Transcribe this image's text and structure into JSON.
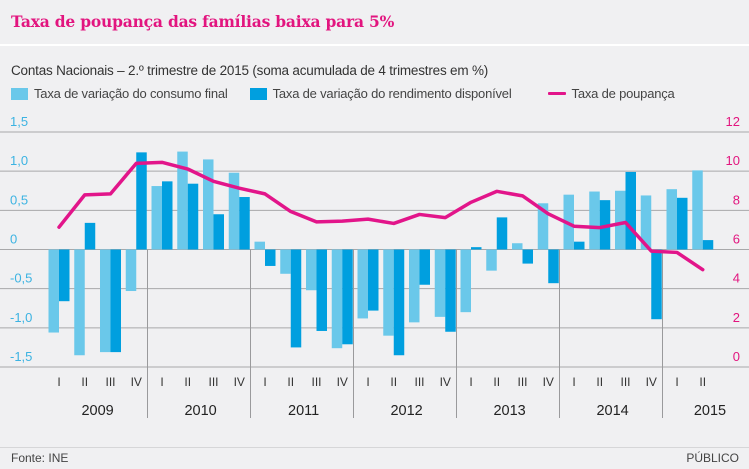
{
  "title": "Taxa de poupança das famílias baixa para 5%",
  "footer": {
    "source": "Fonte: INE",
    "brand": "PÚBLICO"
  },
  "colors": {
    "title": "#e2157f",
    "consumo": "#6ac8ea",
    "rendimento": "#009fdf",
    "poupanca": "#e2158a",
    "left_axis": "#3cb3e2",
    "right_axis": "#e2157f",
    "grid": "#a8a8aa"
  },
  "chart_data": {
    "type": "bar",
    "title": "Taxa de poupança das famílias baixa para 5%",
    "subtitle": "Contas Nacionais – 2.º trimestre de 2015 (soma acumulada de 4 trimestres em %)",
    "grid": true,
    "legend_position": "top-left",
    "years": [
      "2009",
      "2010",
      "2011",
      "2012",
      "2013",
      "2014",
      "2015"
    ],
    "quarter_labels": [
      "I",
      "II",
      "III",
      "IV"
    ],
    "categories": [
      "2009 I",
      "2009 II",
      "2009 III",
      "2009 IV",
      "2010 I",
      "2010 II",
      "2010 III",
      "2010 IV",
      "2011 I",
      "2011 II",
      "2011 III",
      "2011 IV",
      "2012 I",
      "2012 II",
      "2012 III",
      "2012 IV",
      "2013 I",
      "2013 II",
      "2013 III",
      "2013 IV",
      "2014 I",
      "2014 II",
      "2014 III",
      "2014 IV",
      "2015 I",
      "2015 II"
    ],
    "y_left": {
      "ylim": [
        -1.5,
        1.5
      ],
      "ticks": [
        "-1,5",
        "-1,0",
        "-0,5",
        "0",
        "0,5",
        "1,0",
        "1,5"
      ],
      "tick_values": [
        -1.5,
        -1.0,
        -0.5,
        0,
        0.5,
        1.0,
        1.5
      ]
    },
    "y_right": {
      "ylim": [
        0,
        12
      ],
      "ticks": [
        "0",
        "2",
        "4",
        "6",
        "8",
        "10",
        "12"
      ],
      "tick_values": [
        0,
        2,
        4,
        6,
        8,
        10,
        12
      ]
    },
    "series": [
      {
        "name": "Taxa de variação do consumo final",
        "type": "bar",
        "axis": "left",
        "values": [
          -1.06,
          -1.35,
          -1.31,
          -0.53,
          0.81,
          1.25,
          1.15,
          0.98,
          0.1,
          -0.31,
          -0.52,
          -1.26,
          -0.88,
          -1.1,
          -0.93,
          -0.86,
          -0.8,
          -0.27,
          0.08,
          0.59,
          0.7,
          0.74,
          0.75,
          0.69,
          0.77,
          1.01
        ]
      },
      {
        "name": "Taxa de variação do rendimento disponível",
        "type": "bar",
        "axis": "left",
        "values": [
          -0.66,
          0.34,
          -1.31,
          1.24,
          0.87,
          0.84,
          0.45,
          0.67,
          -0.21,
          -1.25,
          -1.04,
          -1.21,
          -0.78,
          -1.35,
          -0.45,
          -1.05,
          0.03,
          0.41,
          -0.18,
          -0.43,
          0.1,
          0.63,
          0.99,
          -0.89,
          0.66,
          0.12
        ]
      },
      {
        "name": "Taxa de poupança",
        "type": "line",
        "axis": "right",
        "values": [
          7.14,
          8.79,
          8.84,
          10.4,
          10.45,
          10.11,
          9.48,
          9.13,
          8.84,
          7.94,
          7.41,
          7.45,
          7.55,
          7.33,
          7.79,
          7.63,
          8.41,
          8.97,
          8.74,
          7.82,
          7.19,
          7.12,
          7.38,
          5.92,
          5.85,
          4.97
        ]
      }
    ]
  }
}
